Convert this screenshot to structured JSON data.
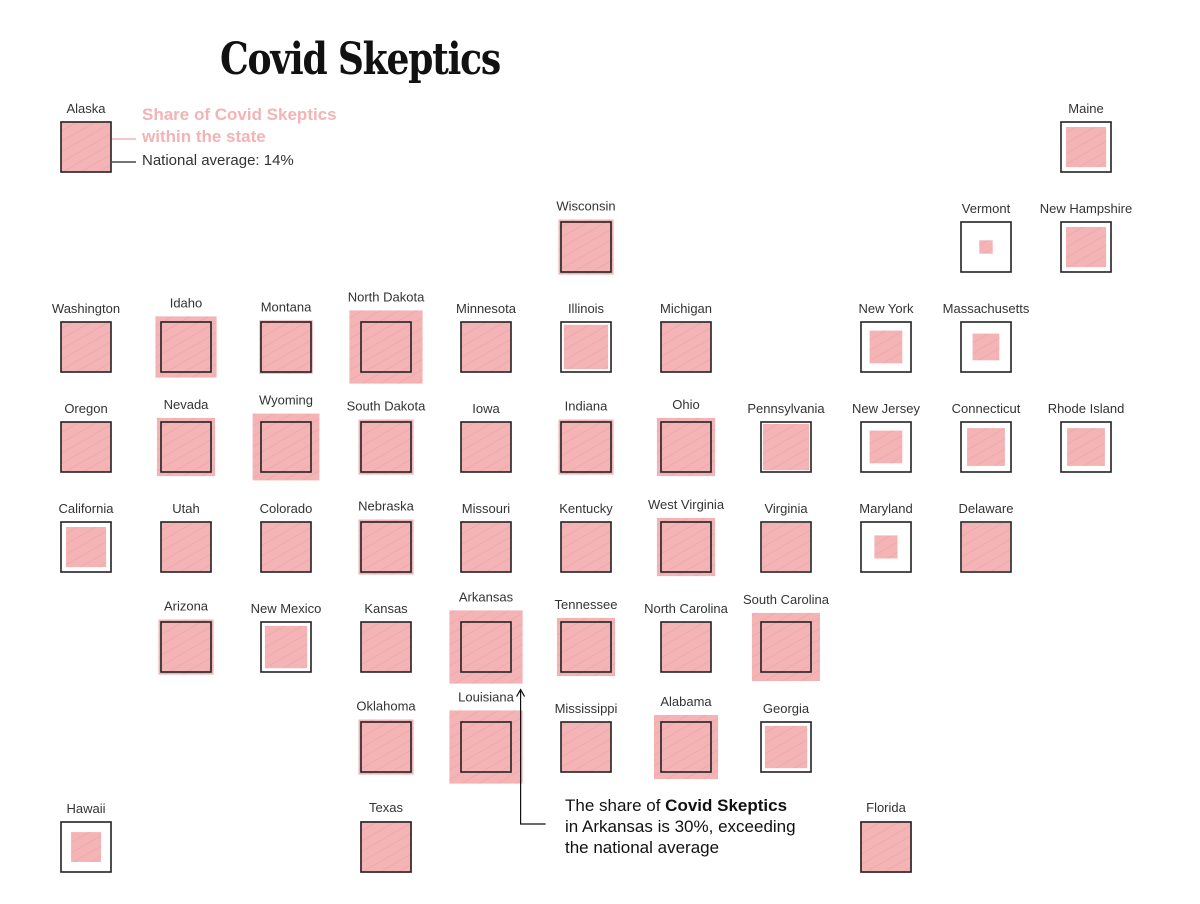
{
  "title": "Covid Skeptics",
  "legend": {
    "share_line1": "Share of Covid Skeptics",
    "share_line2": "within the state",
    "national_average_text": "National average: 14%",
    "example_state": "Alaska"
  },
  "annotation": {
    "line1_prefix": "The share of ",
    "line1_bold": "Covid Skeptics",
    "line2": "in Arkansas is 30%, exceeding",
    "line3": "the national average"
  },
  "colors": {
    "fill": "#f4b3b5",
    "outline": "#222222",
    "text": "#333333",
    "legend_text": "#f4b3b5"
  },
  "chart_data": {
    "type": "proportional-square tile map",
    "national_average": 14,
    "unit": "%",
    "states": [
      {
        "name": "Alaska",
        "col": 0,
        "row": 0,
        "value": 14
      },
      {
        "name": "Maine",
        "col": 10,
        "row": 0,
        "value": 9
      },
      {
        "name": "Wisconsin",
        "col": 5,
        "row": 1,
        "value": 17
      },
      {
        "name": "Vermont",
        "col": 9,
        "row": 1,
        "value": 1
      },
      {
        "name": "New Hampshire",
        "col": 10,
        "row": 1,
        "value": 9
      },
      {
        "name": "Washington",
        "col": 0,
        "row": 2,
        "value": 14
      },
      {
        "name": "Idaho",
        "col": 1,
        "row": 2,
        "value": 21
      },
      {
        "name": "Montana",
        "col": 2,
        "row": 2,
        "value": 16
      },
      {
        "name": "North Dakota",
        "col": 3,
        "row": 2,
        "value": 30
      },
      {
        "name": "Minnesota",
        "col": 4,
        "row": 2,
        "value": 14
      },
      {
        "name": "Illinois",
        "col": 5,
        "row": 2,
        "value": 11
      },
      {
        "name": "Michigan",
        "col": 6,
        "row": 2,
        "value": 14
      },
      {
        "name": "New York",
        "col": 8,
        "row": 2,
        "value": 6
      },
      {
        "name": "Massachusetts",
        "col": 9,
        "row": 2,
        "value": 4
      },
      {
        "name": "Oregon",
        "col": 0,
        "row": 3,
        "value": 14
      },
      {
        "name": "Nevada",
        "col": 1,
        "row": 3,
        "value": 19
      },
      {
        "name": "Wyoming",
        "col": 2,
        "row": 3,
        "value": 25
      },
      {
        "name": "South Dakota",
        "col": 3,
        "row": 3,
        "value": 17
      },
      {
        "name": "Iowa",
        "col": 4,
        "row": 3,
        "value": 14
      },
      {
        "name": "Indiana",
        "col": 5,
        "row": 3,
        "value": 17
      },
      {
        "name": "Ohio",
        "col": 6,
        "row": 3,
        "value": 19
      },
      {
        "name": "Pennsylvania",
        "col": 7,
        "row": 3,
        "value": 12
      },
      {
        "name": "New Jersey",
        "col": 8,
        "row": 3,
        "value": 6
      },
      {
        "name": "Connecticut",
        "col": 9,
        "row": 3,
        "value": 8
      },
      {
        "name": "Rhode Island",
        "col": 10,
        "row": 3,
        "value": 8
      },
      {
        "name": "California",
        "col": 0,
        "row": 4,
        "value": 9
      },
      {
        "name": "Utah",
        "col": 1,
        "row": 4,
        "value": 14
      },
      {
        "name": "Colorado",
        "col": 2,
        "row": 4,
        "value": 14
      },
      {
        "name": "Nebraska",
        "col": 3,
        "row": 4,
        "value": 17
      },
      {
        "name": "Missouri",
        "col": 4,
        "row": 4,
        "value": 14
      },
      {
        "name": "Kentucky",
        "col": 5,
        "row": 4,
        "value": 14
      },
      {
        "name": "West Virginia",
        "col": 6,
        "row": 4,
        "value": 19
      },
      {
        "name": "Virginia",
        "col": 7,
        "row": 4,
        "value": 13
      },
      {
        "name": "Maryland",
        "col": 8,
        "row": 4,
        "value": 3
      },
      {
        "name": "Delaware",
        "col": 9,
        "row": 4,
        "value": 13
      },
      {
        "name": "Arizona",
        "col": 1,
        "row": 5,
        "value": 17
      },
      {
        "name": "New Mexico",
        "col": 2,
        "row": 5,
        "value": 10
      },
      {
        "name": "Kansas",
        "col": 3,
        "row": 5,
        "value": 14
      },
      {
        "name": "Arkansas",
        "col": 4,
        "row": 5,
        "value": 30
      },
      {
        "name": "Tennessee",
        "col": 5,
        "row": 5,
        "value": 19
      },
      {
        "name": "North Carolina",
        "col": 6,
        "row": 5,
        "value": 14
      },
      {
        "name": "South Carolina",
        "col": 7,
        "row": 5,
        "value": 26
      },
      {
        "name": "Oklahoma",
        "col": 3,
        "row": 6,
        "value": 17
      },
      {
        "name": "Louisiana",
        "col": 4,
        "row": 6,
        "value": 30
      },
      {
        "name": "Mississippi",
        "col": 5,
        "row": 6,
        "value": 14
      },
      {
        "name": "Alabama",
        "col": 6,
        "row": 6,
        "value": 23
      },
      {
        "name": "Georgia",
        "col": 7,
        "row": 6,
        "value": 10
      },
      {
        "name": "Hawaii",
        "col": 0,
        "row": 7,
        "value": 5
      },
      {
        "name": "Texas",
        "col": 3,
        "row": 7,
        "value": 15
      },
      {
        "name": "Florida",
        "col": 8,
        "row": 7,
        "value": 15
      }
    ]
  }
}
